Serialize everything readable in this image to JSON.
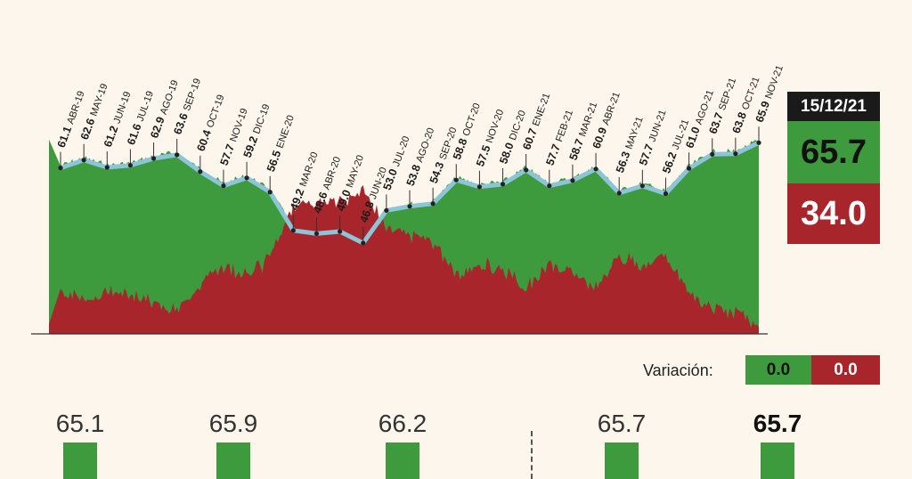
{
  "chart_data": [
    {
      "type": "area",
      "title": "",
      "months": [
        "ABR-19",
        "MAY-19",
        "JUN-19",
        "JUL-19",
        "AGO-19",
        "SEP-19",
        "OCT-19",
        "NOV-19",
        "DIC-19",
        "ENE-20",
        "MAR-20",
        "ABR-20",
        "MAY-20",
        "JUN-20",
        "JUL-20",
        "AGO-20",
        "SEP-20",
        "OCT-20",
        "NOV-20",
        "DIC-20",
        "ENE-21",
        "FEB-21",
        "MAR-21",
        "ABR-21",
        "MAY-21",
        "JUN-21",
        "JUL-21",
        "AGO-21",
        "SEP-21",
        "OCT-21",
        "NOV-21"
      ],
      "values": [
        61.1,
        62.6,
        61.2,
        61.6,
        62.9,
        63.6,
        60.4,
        57.7,
        59.2,
        56.5,
        49.2,
        48.6,
        49.0,
        46.8,
        53.0,
        53.8,
        54.3,
        58.8,
        57.5,
        58.0,
        60.7,
        57.7,
        58.7,
        60.9,
        56.3,
        57.7,
        56.2,
        61.0,
        63.7,
        63.8,
        65.9
      ],
      "colors": {
        "approve": "#3d9a3d",
        "disapprove": "#a8262b",
        "line": "#8cc4d8"
      }
    },
    {
      "type": "bar",
      "values": [
        "65.1",
        "65.9",
        "66.2",
        "65.7",
        "65.7"
      ],
      "color": "#3d9a3d"
    }
  ],
  "summary": {
    "date": "15/12/21",
    "approve": "65.7",
    "disapprove": "34.0",
    "variacion_label": "Variación:",
    "var_approve": "0.0",
    "var_disapprove": "0.0"
  }
}
